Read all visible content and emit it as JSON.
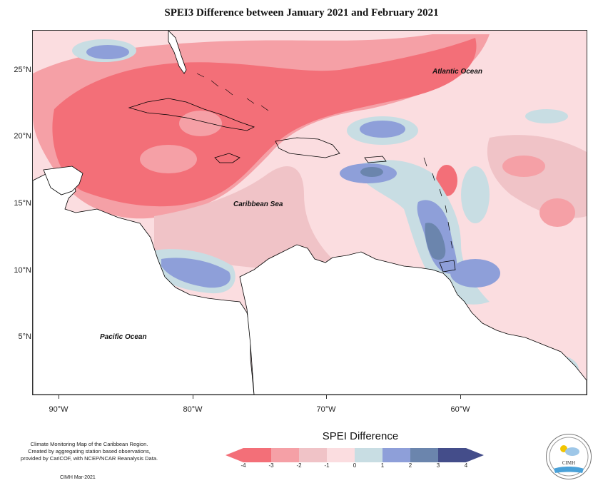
{
  "title": "SPEI3 Difference between January 2021 and February 2021",
  "map": {
    "lat_ticks": [
      "25°N",
      "20°N",
      "15°N",
      "10°N",
      "5°N"
    ],
    "lon_ticks": [
      "90°W",
      "80°W",
      "70°W",
      "60°W"
    ],
    "ocean_labels": {
      "atlantic": "Atlantic Ocean",
      "caribbean": "Caribbean Sea",
      "pacific": "Pacific Ocean"
    }
  },
  "legend": {
    "title": "SPEI Difference",
    "ticks": [
      "-4",
      "-3",
      "-2",
      "-1",
      "0",
      "1",
      "2",
      "3",
      "4"
    ],
    "colors": [
      "#f36f78",
      "#f5a0a6",
      "#f0c3c7",
      "#fbdde0",
      "#fdf1f1",
      "#c8dde3",
      "#8e9fd9",
      "#6b85ad",
      "#444d8a"
    ]
  },
  "footer": {
    "line1": "Climate Monitoring Map of the Caribbean Region.",
    "line2": "Created by aggregating station based observations,",
    "line3": "provided by CariCOF, with NCEP/NCAR Reanalysis Data.",
    "date": "CIMH Mar-2021"
  },
  "logo": {
    "text": "CIMH"
  }
}
